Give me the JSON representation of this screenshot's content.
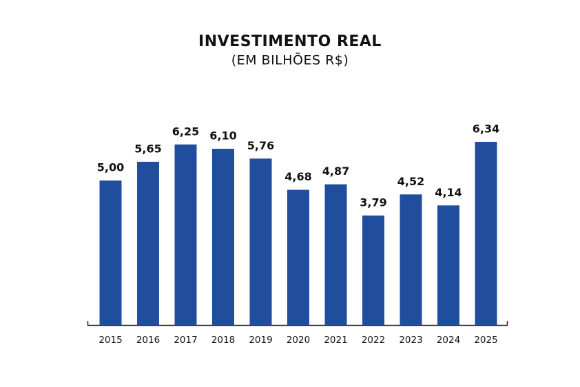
{
  "chart_data": {
    "type": "bar",
    "title": "INVESTIMENTO REAL",
    "subtitle": "(EM BILHÕES R$)",
    "categories": [
      "2015",
      "2016",
      "2017",
      "2018",
      "2019",
      "2020",
      "2021",
      "2022",
      "2023",
      "2024",
      "2025"
    ],
    "values": [
      5.0,
      5.65,
      6.25,
      6.1,
      5.76,
      4.68,
      4.87,
      3.79,
      4.52,
      4.14,
      6.34
    ],
    "value_labels": [
      "5,00",
      "5,65",
      "6,25",
      "6,10",
      "5,76",
      "4,68",
      "4,87",
      "3,79",
      "4,52",
      "4,14",
      "6,34"
    ],
    "color": "#214e9c"
  }
}
